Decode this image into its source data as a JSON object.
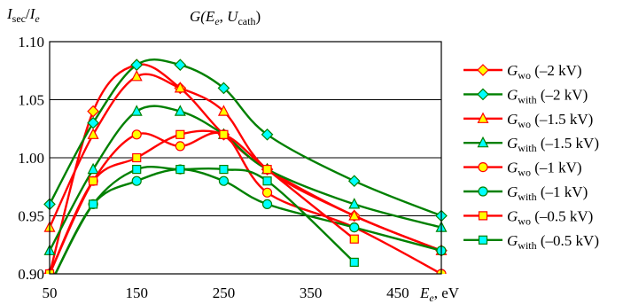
{
  "chart_data": {
    "type": "line",
    "title": "G(E_e, U_cath)",
    "title_parts": {
      "base": "G(",
      "e1": "E",
      "e1_sub": "e",
      "mid": ", ",
      "u": "U",
      "u_sub": "cath",
      "end": ")"
    },
    "ylabel": "I_sec/I_e",
    "ylabel_parts": {
      "i1": "I",
      "i1_sub": "sec",
      "slash": "/",
      "i2": "I",
      "i2_sub": "e"
    },
    "xlabel": "E_e, eV",
    "xlabel_parts": {
      "e": "E",
      "e_sub": "e",
      "rest": ", eV"
    },
    "xlim": [
      50,
      500
    ],
    "ylim": [
      0.9,
      1.1
    ],
    "x_ticks": [
      "50",
      "150",
      "250",
      "350",
      "450"
    ],
    "y_ticks": [
      "0.90",
      "0.95",
      "1.00",
      "1.05",
      "1.10"
    ],
    "grid": "horizontal",
    "legend_position": "right",
    "x": [
      50,
      100,
      150,
      200,
      250,
      300,
      400,
      500
    ],
    "series": [
      {
        "name": "G_wo (–2 kV)",
        "base": "G",
        "sub": "wo",
        "suffix": " (–2 kV)",
        "marker": "diamond",
        "line_color": "#ff0000",
        "marker_fill": "#ffff00",
        "marker_stroke": "#ff0000",
        "points": [
          [
            50,
            0.9
          ],
          [
            100,
            1.04
          ],
          [
            150,
            1.08
          ],
          [
            200,
            1.06
          ],
          [
            250,
            1.02
          ],
          [
            300,
            0.99
          ],
          [
            400,
            0.95
          ],
          [
            500,
            0.92
          ]
        ]
      },
      {
        "name": "G_with (–2 kV)",
        "base": "G",
        "sub": "with",
        "suffix": " (–2 kV)",
        "marker": "diamond",
        "line_color": "#008000",
        "marker_fill": "#00ffff",
        "marker_stroke": "#008000",
        "points": [
          [
            50,
            0.96
          ],
          [
            100,
            1.03
          ],
          [
            150,
            1.08
          ],
          [
            200,
            1.08
          ],
          [
            250,
            1.06
          ],
          [
            300,
            1.02
          ],
          [
            400,
            0.98
          ],
          [
            500,
            0.95
          ]
        ]
      },
      {
        "name": "G_wo (–1.5 kV)",
        "base": "G",
        "sub": "wo",
        "suffix": " (–1.5 kV)",
        "marker": "triangle",
        "line_color": "#ff0000",
        "marker_fill": "#ffff00",
        "marker_stroke": "#ff0000",
        "points": [
          [
            50,
            0.94
          ],
          [
            100,
            1.02
          ],
          [
            150,
            1.07
          ],
          [
            200,
            1.06
          ],
          [
            250,
            1.04
          ],
          [
            300,
            0.99
          ],
          [
            400,
            0.95
          ],
          [
            500,
            0.92
          ]
        ]
      },
      {
        "name": "G_with (–1.5 kV)",
        "base": "G",
        "sub": "with",
        "suffix": " (–1.5 kV)",
        "marker": "triangle",
        "line_color": "#008000",
        "marker_fill": "#00ffff",
        "marker_stroke": "#008000",
        "points": [
          [
            50,
            0.92
          ],
          [
            100,
            0.99
          ],
          [
            150,
            1.04
          ],
          [
            200,
            1.04
          ],
          [
            250,
            1.02
          ],
          [
            300,
            0.99
          ],
          [
            400,
            0.96
          ],
          [
            500,
            0.94
          ]
        ]
      },
      {
        "name": "G_wo (–1 kV)",
        "base": "G",
        "sub": "wo",
        "suffix": " (–1 kV)",
        "marker": "circle",
        "line_color": "#ff0000",
        "marker_fill": "#ffff00",
        "marker_stroke": "#ff0000",
        "points": [
          [
            50,
            0.9
          ],
          [
            100,
            0.98
          ],
          [
            150,
            1.02
          ],
          [
            200,
            1.01
          ],
          [
            250,
            1.02
          ],
          [
            300,
            0.97
          ],
          [
            400,
            0.94
          ],
          [
            500,
            0.9
          ]
        ]
      },
      {
        "name": "G_with (–1 kV)",
        "base": "G",
        "sub": "with",
        "suffix": " (–1 kV)",
        "marker": "circle",
        "line_color": "#008000",
        "marker_fill": "#00ffff",
        "marker_stroke": "#008000",
        "points": [
          [
            50,
            0.89
          ],
          [
            100,
            0.96
          ],
          [
            150,
            0.98
          ],
          [
            200,
            0.99
          ],
          [
            250,
            0.98
          ],
          [
            300,
            0.96
          ],
          [
            400,
            0.94
          ],
          [
            500,
            0.92
          ]
        ]
      },
      {
        "name": "G_wo (–0.5 kV)",
        "base": "G",
        "sub": "wo",
        "suffix": " (–0.5 kV)",
        "marker": "square",
        "line_color": "#ff0000",
        "marker_fill": "#ffff00",
        "marker_stroke": "#ff0000",
        "points": [
          [
            50,
            0.9
          ],
          [
            100,
            0.98
          ],
          [
            150,
            1.0
          ],
          [
            200,
            1.02
          ],
          [
            250,
            1.02
          ],
          [
            300,
            0.99
          ],
          [
            400,
            0.93
          ]
        ]
      },
      {
        "name": "G_with (–0.5 kV)",
        "base": "G",
        "sub": "with",
        "suffix": " (–0.5 kV)",
        "marker": "square",
        "line_color": "#008000",
        "marker_fill": "#00ffff",
        "marker_stroke": "#008000",
        "points": [
          [
            50,
            0.89
          ],
          [
            100,
            0.96
          ],
          [
            150,
            0.99
          ],
          [
            200,
            0.99
          ],
          [
            250,
            0.99
          ],
          [
            300,
            0.98
          ],
          [
            400,
            0.91
          ]
        ]
      }
    ]
  }
}
